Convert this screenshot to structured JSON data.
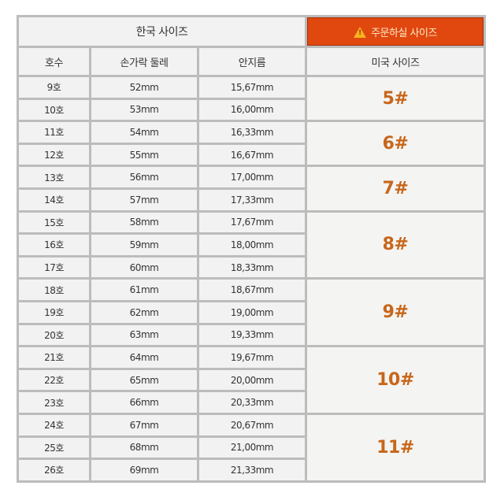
{
  "header": {
    "korean_size": "한국 사이즈",
    "order_size": "주문하실 사이즈",
    "order_icon": "warning-icon",
    "columns": [
      "호수",
      "손가락 둘레",
      "안지름",
      "미국 사이즈"
    ]
  },
  "colors": {
    "accent": "#e0480f",
    "us_size": "#c8661a"
  },
  "rows": [
    {
      "no": "9호",
      "circ": "52mm",
      "dia": "15,67mm"
    },
    {
      "no": "10호",
      "circ": "53mm",
      "dia": "16,00mm"
    },
    {
      "no": "11호",
      "circ": "54mm",
      "dia": "16,33mm"
    },
    {
      "no": "12호",
      "circ": "55mm",
      "dia": "16,67mm"
    },
    {
      "no": "13호",
      "circ": "56mm",
      "dia": "17,00mm"
    },
    {
      "no": "14호",
      "circ": "57mm",
      "dia": "17,33mm"
    },
    {
      "no": "15호",
      "circ": "58mm",
      "dia": "17,67mm"
    },
    {
      "no": "16호",
      "circ": "59mm",
      "dia": "18,00mm"
    },
    {
      "no": "17호",
      "circ": "60mm",
      "dia": "18,33mm"
    },
    {
      "no": "18호",
      "circ": "61mm",
      "dia": "18,67mm"
    },
    {
      "no": "19호",
      "circ": "62mm",
      "dia": "19,00mm"
    },
    {
      "no": "20호",
      "circ": "63mm",
      "dia": "19,33mm"
    },
    {
      "no": "21호",
      "circ": "64mm",
      "dia": "19,67mm"
    },
    {
      "no": "22호",
      "circ": "65mm",
      "dia": "20,00mm"
    },
    {
      "no": "23호",
      "circ": "66mm",
      "dia": "20,33mm"
    },
    {
      "no": "24호",
      "circ": "67mm",
      "dia": "20,67mm"
    },
    {
      "no": "25호",
      "circ": "68mm",
      "dia": "21,00mm"
    },
    {
      "no": "26호",
      "circ": "69mm",
      "dia": "21,33mm"
    }
  ],
  "us_sizes": [
    {
      "label": "5#",
      "rows": 2
    },
    {
      "label": "6#",
      "rows": 2
    },
    {
      "label": "7#",
      "rows": 2
    },
    {
      "label": "8#",
      "rows": 3
    },
    {
      "label": "9#",
      "rows": 3
    },
    {
      "label": "10#",
      "rows": 3
    },
    {
      "label": "11#",
      "rows": 3
    }
  ]
}
